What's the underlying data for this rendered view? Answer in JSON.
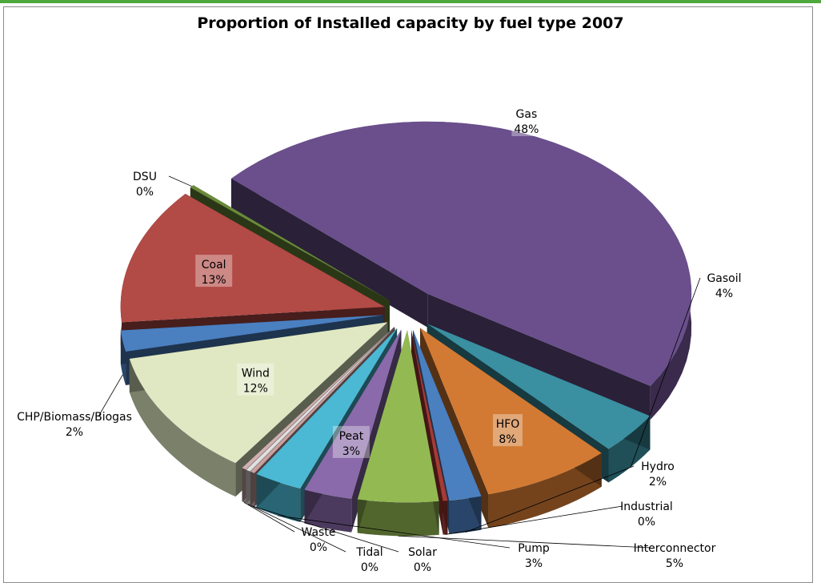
{
  "chart_data": {
    "type": "pie",
    "title": "Proportion of Installed capacity by fuel type 2007",
    "slices": [
      {
        "name": "Gas",
        "pct": 48,
        "label": "48%",
        "color": "#6a4f8c"
      },
      {
        "name": "Gasoil",
        "pct": 4,
        "label": "4%",
        "color": "#3a8fa0"
      },
      {
        "name": "HFO",
        "pct": 8,
        "label": "8%",
        "color": "#d27a33"
      },
      {
        "name": "Hydro",
        "pct": 2,
        "label": "2%",
        "color": "#4a7fc0"
      },
      {
        "name": "Industrial",
        "pct": 0,
        "label": "0%",
        "color": "#a83a35"
      },
      {
        "name": "Interconnector",
        "pct": 5,
        "label": "5%",
        "color": "#93ba52"
      },
      {
        "name": "Peat",
        "pct": 3,
        "label": "3%",
        "color": "#8a6aaa"
      },
      {
        "name": "Pump",
        "pct": 3,
        "label": "3%",
        "color": "#4bb8d4"
      },
      {
        "name": "Solar",
        "pct": 0,
        "label": "0%",
        "color": "#c9a0a0"
      },
      {
        "name": "Tidal",
        "pct": 0,
        "label": "0%",
        "color": "#e0e0e0"
      },
      {
        "name": "Waste",
        "pct": 0,
        "label": "0%",
        "color": "#d0b0b0"
      },
      {
        "name": "Wind",
        "pct": 12,
        "label": "12%",
        "color": "#dfe8c2"
      },
      {
        "name": "CHP/Biomass/Biogas",
        "pct": 2,
        "label": "2%",
        "color": "#4a7fc0"
      },
      {
        "name": "Coal",
        "pct": 13,
        "label": "13%",
        "color": "#b24a46"
      },
      {
        "name": "DSU",
        "pct": 0,
        "label": "0%",
        "color": "#6a8a3a"
      }
    ]
  }
}
